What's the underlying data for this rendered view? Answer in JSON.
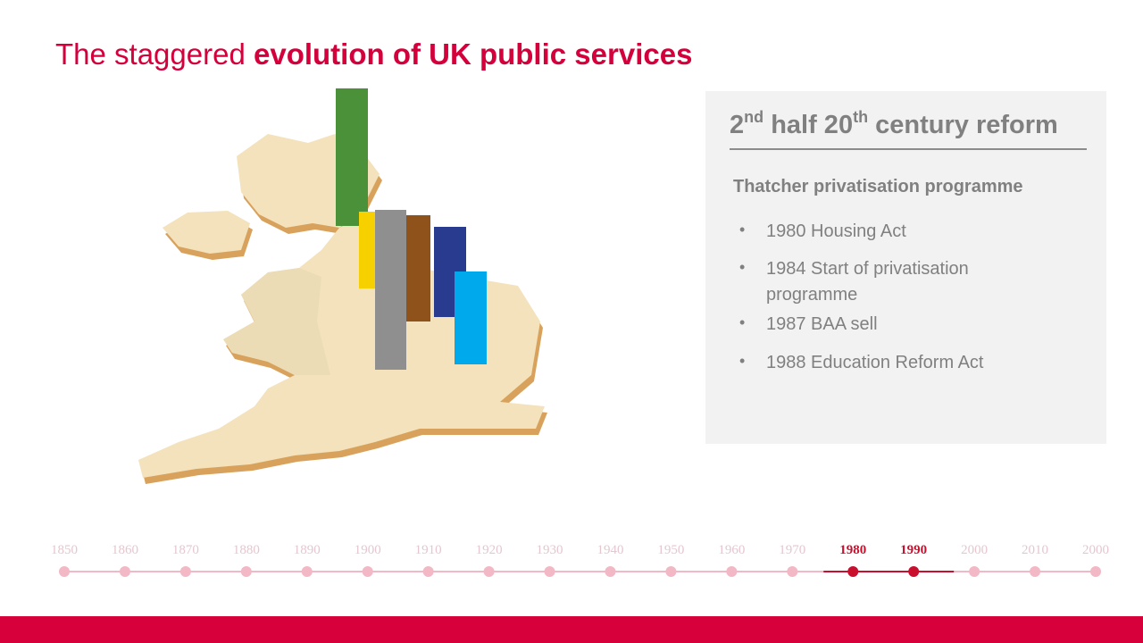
{
  "header": {
    "title_plain": "The staggered ",
    "title_bold": "evolution of UK public services"
  },
  "panel": {
    "heading": {
      "part1": "2",
      "sup1": "nd",
      "part2": " half 20",
      "sup2": "th",
      "part3": " century reform"
    },
    "subheading": "Thatcher privatisation programme",
    "items": [
      "1980 Housing Act",
      "1984 Start of privatisation programme",
      "1987 BAA sell",
      "1988 Education Reform Act"
    ]
  },
  "timeline": {
    "labels": [
      "1850",
      "1860",
      "1870",
      "1880",
      "1890",
      "1900",
      "1910",
      "1920",
      "1930",
      "1940",
      "1950",
      "1960",
      "1970",
      "1980",
      "1990",
      "2000",
      "2010",
      "2000"
    ],
    "active": [
      "1980",
      "1990"
    ],
    "color": "#f2b8c6",
    "active_color": "#c8102e"
  }
}
